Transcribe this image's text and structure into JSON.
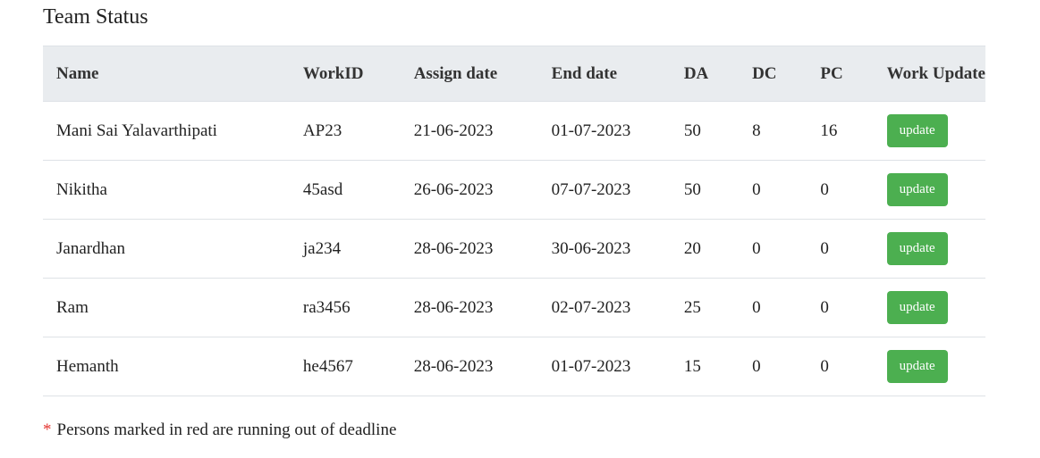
{
  "page": {
    "title": "Team Status"
  },
  "table": {
    "headers": [
      "Name",
      "WorkID",
      "Assign date",
      "End date",
      "DA",
      "DC",
      "PC",
      "Work Update"
    ],
    "rows": [
      {
        "name": "Mani Sai Yalavarthipati",
        "work_id": "AP23",
        "assign_date": "21-06-2023",
        "end_date": "01-07-2023",
        "da": "50",
        "dc": "8",
        "pc": "16",
        "update_label": "update"
      },
      {
        "name": "Nikitha",
        "work_id": "45asd",
        "assign_date": "26-06-2023",
        "end_date": "07-07-2023",
        "da": "50",
        "dc": "0",
        "pc": "0",
        "update_label": "update"
      },
      {
        "name": "Janardhan",
        "work_id": "ja234",
        "assign_date": "28-06-2023",
        "end_date": "30-06-2023",
        "da": "20",
        "dc": "0",
        "pc": "0",
        "update_label": "update"
      },
      {
        "name": "Ram",
        "work_id": "ra3456",
        "assign_date": "28-06-2023",
        "end_date": "02-07-2023",
        "da": "25",
        "dc": "0",
        "pc": "0",
        "update_label": "update"
      },
      {
        "name": "Hemanth",
        "work_id": "he4567",
        "assign_date": "28-06-2023",
        "end_date": "01-07-2023",
        "da": "15",
        "dc": "0",
        "pc": "0",
        "update_label": "update"
      }
    ]
  },
  "footnote": {
    "asterisk": "*",
    "text": "Persons marked in red are running out of deadline"
  },
  "colors": {
    "header_bg": "#e9ecef",
    "button_bg": "#4caf50",
    "asterisk": "#e53935"
  }
}
